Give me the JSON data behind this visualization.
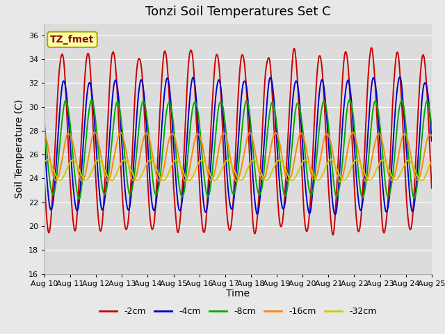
{
  "title": "Tonzi Soil Temperatures Set C",
  "xlabel": "Time",
  "ylabel": "Soil Temperature (C)",
  "ylim": [
    16,
    37
  ],
  "xlim": [
    0,
    15
  ],
  "yticks": [
    16,
    18,
    20,
    22,
    24,
    26,
    28,
    30,
    32,
    34,
    36
  ],
  "xtick_labels": [
    "Aug 10",
    "Aug 11",
    "Aug 12",
    "Aug 13",
    "Aug 14",
    "Aug 15",
    "Aug 16",
    "Aug 17",
    "Aug 18",
    "Aug 19",
    "Aug 20",
    "Aug 21",
    "Aug 22",
    "Aug 23",
    "Aug 24",
    "Aug 25"
  ],
  "series_order": [
    "-2cm",
    "-4cm",
    "-8cm",
    "-16cm",
    "-32cm"
  ],
  "series": {
    "-2cm": {
      "color": "#cc0000",
      "amplitude": 7.5,
      "mean": 27.0,
      "phase_days": 0.42,
      "noise": 0.8
    },
    "-4cm": {
      "color": "#0000cc",
      "amplitude": 5.5,
      "mean": 26.8,
      "phase_days": 0.5,
      "noise": 0.5
    },
    "-8cm": {
      "color": "#00aa00",
      "amplitude": 4.0,
      "mean": 26.5,
      "phase_days": 0.58,
      "noise": 0.4
    },
    "-16cm": {
      "color": "#ff8800",
      "amplitude": 2.0,
      "mean": 25.8,
      "phase_days": 0.7,
      "noise": 0.2
    },
    "-32cm": {
      "color": "#cccc00",
      "amplitude": 0.85,
      "mean": 24.7,
      "phase_days": 0.85,
      "noise": 0.08
    }
  },
  "annotation_text": "TZ_fmet",
  "plot_bg_color": "#dcdcdc",
  "fig_bg_color": "#e8e8e8",
  "title_fontsize": 13,
  "label_fontsize": 10,
  "tick_fontsize": 8,
  "legend_fontsize": 9,
  "line_width": 1.4
}
